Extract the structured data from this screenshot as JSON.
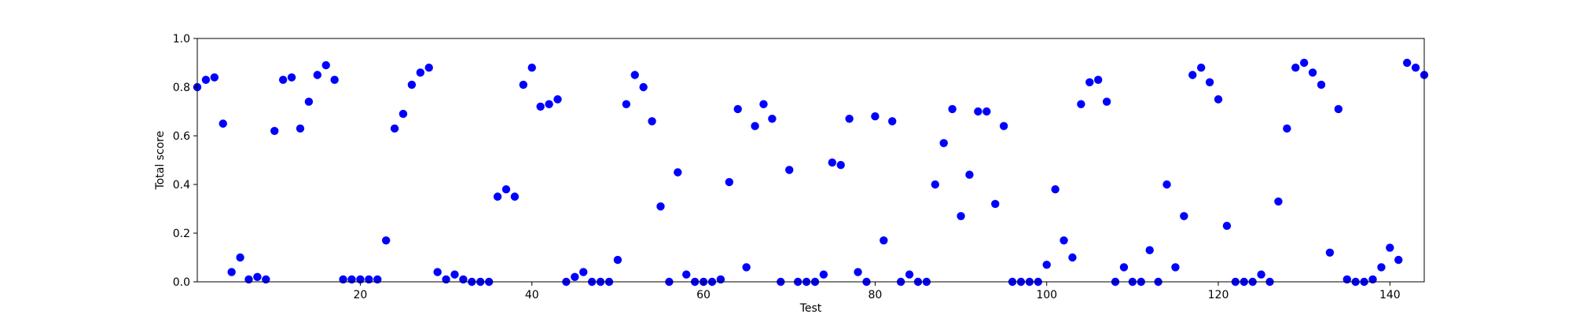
{
  "chart_data": {
    "type": "scatter",
    "title": "",
    "xlabel": "Test",
    "ylabel": "Total score",
    "xlim": [
      1,
      144
    ],
    "ylim": [
      0,
      1.0
    ],
    "xticks": [
      20,
      40,
      60,
      80,
      100,
      120,
      140
    ],
    "xtick_labels": [
      "20",
      "40",
      "60",
      "80",
      "100",
      "120",
      "140"
    ],
    "yticks": [
      0.0,
      0.2,
      0.4,
      0.6,
      0.8,
      1.0
    ],
    "ytick_labels": [
      "0.0",
      "0.2",
      "0.4",
      "0.6",
      "0.8",
      "1.0"
    ],
    "grid": false,
    "marker_color": "#0000ff",
    "x": [
      1,
      2,
      3,
      4,
      5,
      6,
      7,
      8,
      9,
      10,
      11,
      12,
      13,
      14,
      15,
      16,
      17,
      18,
      19,
      20,
      21,
      22,
      23,
      24,
      25,
      26,
      27,
      28,
      29,
      30,
      31,
      32,
      33,
      34,
      35,
      36,
      37,
      38,
      39,
      40,
      41,
      42,
      43,
      44,
      45,
      46,
      47,
      48,
      49,
      50,
      51,
      52,
      53,
      54,
      55,
      56,
      57,
      58,
      59,
      60,
      61,
      62,
      63,
      64,
      65,
      66,
      67,
      68,
      69,
      70,
      71,
      72,
      73,
      74,
      75,
      76,
      77,
      78,
      79,
      80,
      81,
      82,
      83,
      84,
      85,
      86,
      87,
      88,
      89,
      90,
      91,
      92,
      93,
      94,
      95,
      96,
      97,
      98,
      99,
      100,
      101,
      102,
      103,
      104,
      105,
      106,
      107,
      108,
      109,
      110,
      111,
      112,
      113,
      114,
      115,
      116,
      117,
      118,
      119,
      120,
      121,
      122,
      123,
      124,
      125,
      126,
      127,
      128,
      129,
      130,
      131,
      132,
      133,
      134,
      135,
      136,
      137,
      138,
      139,
      140,
      141,
      142,
      143,
      144
    ],
    "y": [
      0.8,
      0.83,
      0.84,
      0.65,
      0.04,
      0.1,
      0.01,
      0.02,
      0.01,
      0.62,
      0.83,
      0.84,
      0.63,
      0.74,
      0.85,
      0.89,
      0.83,
      0.01,
      0.01,
      0.01,
      0.01,
      0.01,
      0.17,
      0.63,
      0.69,
      0.81,
      0.86,
      0.88,
      0.04,
      0.01,
      0.03,
      0.01,
      0.0,
      0.0,
      0.0,
      0.35,
      0.38,
      0.35,
      0.81,
      0.88,
      0.72,
      0.73,
      0.75,
      0.0,
      0.02,
      0.04,
      0.0,
      0.0,
      0.0,
      0.09,
      0.73,
      0.85,
      0.8,
      0.66,
      0.31,
      0.0,
      0.45,
      0.03,
      0.0,
      0.0,
      0.0,
      0.01,
      0.41,
      0.71,
      0.06,
      0.64,
      0.73,
      0.67,
      0.0,
      0.46,
      0.0,
      0.0,
      0.0,
      0.03,
      0.49,
      0.48,
      0.67,
      0.04,
      0.0,
      0.68,
      0.17,
      0.66,
      0.0,
      0.03,
      0.0,
      0.0,
      0.4,
      0.57,
      0.71,
      0.27,
      0.44,
      0.7,
      0.7,
      0.32,
      0.64,
      0.0,
      0.0,
      0.0,
      0.0,
      0.07,
      0.38,
      0.17,
      0.1,
      0.73,
      0.82,
      0.83,
      0.74,
      0.0,
      0.06,
      0.0,
      0.0,
      0.13,
      0.0,
      0.4,
      0.06,
      0.27,
      0.85,
      0.88,
      0.82,
      0.75,
      0.23,
      0.0,
      0.0,
      0.0,
      0.03,
      0.0,
      0.33,
      0.63,
      0.88,
      0.9,
      0.86,
      0.81,
      0.12,
      0.71,
      0.01,
      0.0,
      0.0,
      0.01,
      0.06,
      0.14,
      0.09,
      0.9,
      0.88,
      0.85
    ]
  }
}
